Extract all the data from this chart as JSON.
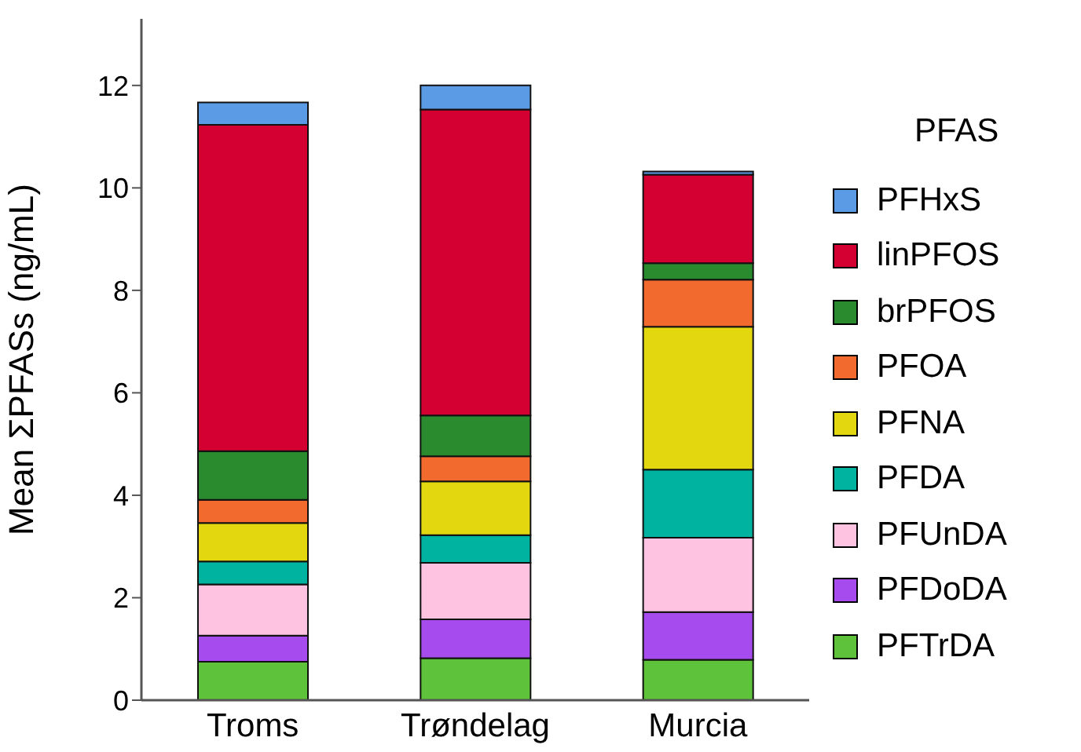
{
  "chart_data": {
    "type": "bar",
    "stacked": true,
    "ylabel": "Mean ΣPFASs (ng/mL)",
    "legend_title": "PFAS",
    "legend": "right",
    "grid": false,
    "categories": [
      "Troms",
      "Trøndelag",
      "Murcia"
    ],
    "ylim": [
      0,
      13.3
    ],
    "yticks": [
      0,
      2,
      4,
      6,
      8,
      10,
      12
    ],
    "series": [
      {
        "name": "PFTrDA",
        "color": "#5ec33a",
        "values": [
          0.75,
          0.82,
          0.79
        ]
      },
      {
        "name": "PFDoDA",
        "color": "#a64cef",
        "values": [
          0.51,
          0.76,
          0.93
        ]
      },
      {
        "name": "PFUnDA",
        "color": "#fdc3e0",
        "values": [
          1.0,
          1.1,
          1.45
        ]
      },
      {
        "name": "PFDA",
        "color": "#00b3a0",
        "values": [
          0.45,
          0.54,
          1.33
        ]
      },
      {
        "name": "PFNA",
        "color": "#e3d80f",
        "values": [
          0.75,
          1.05,
          2.79
        ]
      },
      {
        "name": "PFOA",
        "color": "#f26a2e",
        "values": [
          0.45,
          0.49,
          0.92
        ]
      },
      {
        "name": "brPFOS",
        "color": "#2a8a2e",
        "values": [
          0.95,
          0.8,
          0.32
        ]
      },
      {
        "name": "linPFOS",
        "color": "#d50032",
        "values": [
          6.37,
          5.97,
          1.73
        ]
      },
      {
        "name": "PFHxS",
        "color": "#5b9be6",
        "values": [
          0.44,
          0.47,
          0.06
        ]
      }
    ]
  }
}
